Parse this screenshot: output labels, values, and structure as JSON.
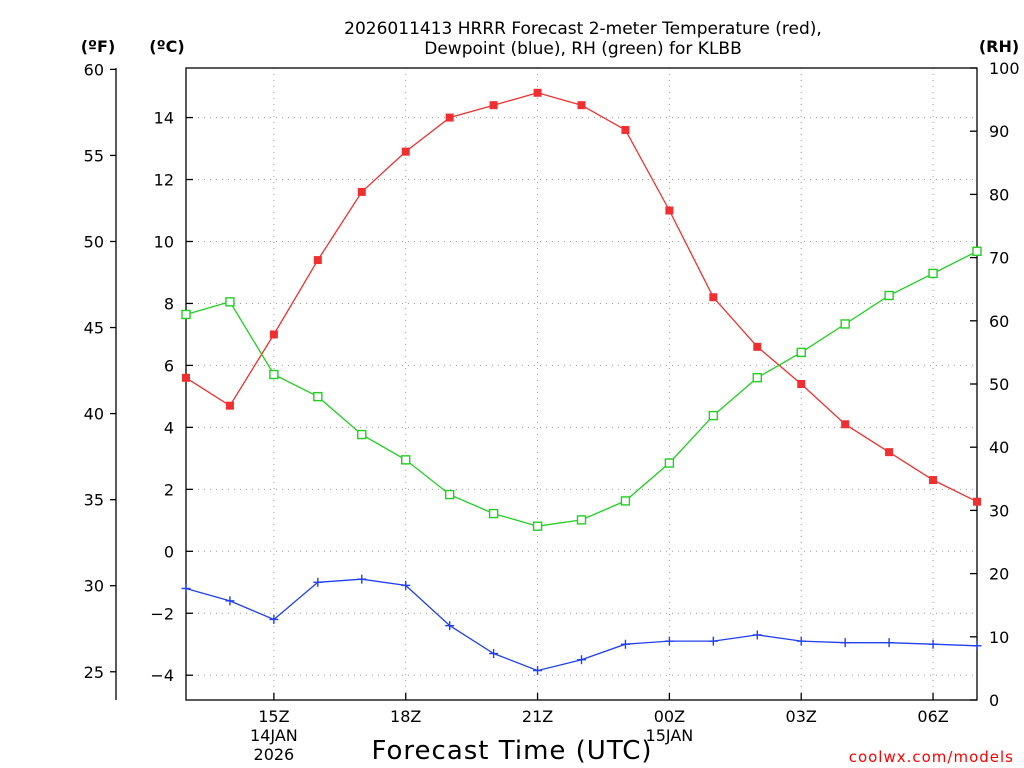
{
  "chart_data": {
    "type": "line",
    "title_line1": "2026011413 HRRR Forecast 2-meter Temperature (red),",
    "title_line2": "Dewpoint (blue), RH (green) for KLBB",
    "xlabel": "Forecast Time (UTC)",
    "credit": "coolwx.com/models",
    "unit_left_f": "(ºF)",
    "unit_left_c": "(ºC)",
    "unit_right": "(RH)",
    "hours_utc": [
      13,
      14,
      15,
      16,
      17,
      18,
      19,
      20,
      21,
      22,
      23,
      24,
      25,
      26,
      27,
      28,
      29,
      30,
      31
    ],
    "xlim": [
      13,
      31
    ],
    "ylim_c": [
      -4.8,
      15.6
    ],
    "ylim_rh": [
      0,
      100
    ],
    "x_ticks": [
      {
        "hour": 15,
        "label": "15Z",
        "sub1": "14JAN",
        "sub2": "2026"
      },
      {
        "hour": 18,
        "label": "18Z",
        "sub1": "",
        "sub2": ""
      },
      {
        "hour": 21,
        "label": "21Z",
        "sub1": "",
        "sub2": ""
      },
      {
        "hour": 24,
        "label": "00Z",
        "sub1": "15JAN",
        "sub2": ""
      },
      {
        "hour": 27,
        "label": "03Z",
        "sub1": "",
        "sub2": ""
      },
      {
        "hour": 30,
        "label": "06Z",
        "sub1": "",
        "sub2": ""
      }
    ],
    "c_ticks": [
      -4,
      -2,
      0,
      2,
      4,
      6,
      8,
      10,
      12,
      14
    ],
    "c_tick_labels": [
      "−4",
      "−2",
      "0",
      "2",
      "4",
      "6",
      "8",
      "10",
      "12",
      "14"
    ],
    "f_ticks": [
      25,
      30,
      35,
      40,
      45,
      50,
      55,
      60
    ],
    "f_tick_labels": [
      "25",
      "30",
      "35",
      "40",
      "45",
      "50",
      "55",
      "60"
    ],
    "rh_ticks": [
      0,
      10,
      20,
      30,
      40,
      50,
      60,
      70,
      80,
      90,
      100
    ],
    "rh_tick_labels": [
      "0",
      "10",
      "20",
      "30",
      "40",
      "50",
      "60",
      "70",
      "80",
      "90",
      "100"
    ],
    "series": [
      {
        "name": "2-meter Temperature (°C)",
        "color": "#f03030",
        "marker": "filled-square",
        "axis": "celsius",
        "values": [
          5.6,
          4.7,
          7.0,
          9.4,
          11.6,
          12.9,
          14.0,
          14.4,
          14.8,
          14.4,
          13.6,
          11.0,
          8.2,
          6.6,
          5.4,
          4.1,
          3.2,
          2.3,
          1.6
        ]
      },
      {
        "name": "Dewpoint (°C)",
        "color": "#2040f0",
        "marker": "plus",
        "axis": "celsius",
        "values": [
          -1.2,
          -1.6,
          -2.2,
          -1.0,
          -0.9,
          -1.1,
          -2.4,
          -3.3,
          -3.85,
          -3.5,
          -3.0,
          -2.9,
          -2.9,
          -2.7,
          -2.9,
          -2.95,
          -2.95,
          -3.0,
          -3.05
        ]
      },
      {
        "name": "Relative Humidity (%)",
        "color": "#20d020",
        "marker": "open-square",
        "axis": "rh",
        "values": [
          61,
          63,
          51.5,
          48,
          42,
          38,
          32.5,
          29.5,
          27.5,
          28.5,
          31.5,
          37.5,
          45,
          51,
          55,
          59.5,
          64,
          67.5,
          71
        ]
      }
    ]
  }
}
